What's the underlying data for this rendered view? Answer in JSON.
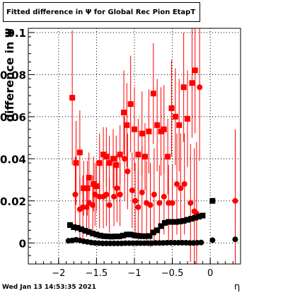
{
  "chart_data": {
    "type": "scatter",
    "title": "Fitted difference in  Ψ  for Global Rec Pion EtapT",
    "xlabel": "η",
    "ylabel": "difference in  Ψ",
    "xlim": [
      -2.4,
      0.4
    ],
    "ylim": [
      -0.01,
      0.102
    ],
    "x_ticks": [
      -2,
      -1.5,
      -1,
      -0.5,
      0
    ],
    "x_tick_labels": [
      "−2",
      "−1.5",
      "−1",
      "−0.5",
      "0"
    ],
    "y_ticks": [
      0,
      0.02,
      0.04,
      0.06,
      0.08,
      0.1
    ],
    "y_tick_labels": [
      "0",
      "0.02",
      "0.04",
      "0.06",
      "0.08",
      "0.1"
    ],
    "grid": true,
    "colors": {
      "red": "#ff0000",
      "black": "#000000",
      "frame": "#000000"
    },
    "series": [
      {
        "marker": "square",
        "color": "#ff0000",
        "points": [
          {
            "x": -1.82,
            "y": 0.069,
            "err": 0.032
          },
          {
            "x": -1.77,
            "y": 0.038,
            "err": 0.02
          },
          {
            "x": -1.72,
            "y": 0.043,
            "err": 0.02
          },
          {
            "x": -1.67,
            "y": 0.026,
            "err": 0.013
          },
          {
            "x": -1.62,
            "y": 0.026,
            "err": 0.013
          },
          {
            "x": -1.6,
            "y": 0.031,
            "err": 0.012
          },
          {
            "x": -1.54,
            "y": 0.028,
            "err": 0.013
          },
          {
            "x": -1.5,
            "y": 0.027,
            "err": 0.012
          },
          {
            "x": -1.46,
            "y": 0.038,
            "err": 0.014
          },
          {
            "x": -1.41,
            "y": 0.042,
            "err": 0.013
          },
          {
            "x": -1.37,
            "y": 0.041,
            "err": 0.014
          },
          {
            "x": -1.33,
            "y": 0.038,
            "err": 0.013
          },
          {
            "x": -1.28,
            "y": 0.04,
            "err": 0.014
          },
          {
            "x": -1.24,
            "y": 0.037,
            "err": 0.014
          },
          {
            "x": -1.19,
            "y": 0.042,
            "err": 0.014
          },
          {
            "x": -1.14,
            "y": 0.062,
            "err": 0.02
          },
          {
            "x": -1.1,
            "y": 0.056,
            "err": 0.02
          },
          {
            "x": -1.05,
            "y": 0.066,
            "err": 0.023
          },
          {
            "x": -1.0,
            "y": 0.054,
            "err": 0.02
          },
          {
            "x": -0.95,
            "y": 0.042,
            "err": 0.017
          },
          {
            "x": -0.9,
            "y": 0.052,
            "err": 0.02
          },
          {
            "x": -0.86,
            "y": 0.041,
            "err": 0.016
          },
          {
            "x": -0.81,
            "y": 0.053,
            "err": 0.02
          },
          {
            "x": -0.75,
            "y": 0.071,
            "err": 0.024
          },
          {
            "x": -0.7,
            "y": 0.056,
            "err": 0.022
          },
          {
            "x": -0.65,
            "y": 0.053,
            "err": 0.021
          },
          {
            "x": -0.61,
            "y": 0.054,
            "err": 0.021
          },
          {
            "x": -0.56,
            "y": 0.041,
            "err": 0.018
          },
          {
            "x": -0.51,
            "y": 0.064,
            "err": 0.023
          },
          {
            "x": -0.46,
            "y": 0.06,
            "err": 0.023
          },
          {
            "x": -0.41,
            "y": 0.056,
            "err": 0.022
          },
          {
            "x": -0.35,
            "y": 0.074,
            "err": 0.026
          },
          {
            "x": -0.3,
            "y": 0.059,
            "err": 0.023
          },
          {
            "x": -0.24,
            "y": 0.076,
            "err": 0.026
          },
          {
            "x": -0.2,
            "y": 0.082,
            "err": 0.03
          }
        ]
      },
      {
        "marker": "circle",
        "color": "#ff0000",
        "points": [
          {
            "x": -1.78,
            "y": 0.023,
            "err": 0.018
          },
          {
            "x": -1.72,
            "y": 0.016,
            "err": 0.015
          },
          {
            "x": -1.68,
            "y": 0.017,
            "err": 0.015
          },
          {
            "x": -1.63,
            "y": 0.017,
            "err": 0.014
          },
          {
            "x": -1.6,
            "y": 0.019,
            "err": 0.014
          },
          {
            "x": -1.55,
            "y": 0.018,
            "err": 0.014
          },
          {
            "x": -1.52,
            "y": 0.023,
            "err": 0.015
          },
          {
            "x": -1.46,
            "y": 0.022,
            "err": 0.015
          },
          {
            "x": -1.41,
            "y": 0.022,
            "err": 0.015
          },
          {
            "x": -1.37,
            "y": 0.023,
            "err": 0.015
          },
          {
            "x": -1.33,
            "y": 0.018,
            "err": 0.013
          },
          {
            "x": -1.27,
            "y": 0.022,
            "err": 0.014
          },
          {
            "x": -1.23,
            "y": 0.026,
            "err": 0.016
          },
          {
            "x": -1.19,
            "y": 0.023,
            "err": 0.015
          },
          {
            "x": -1.13,
            "y": 0.04,
            "err": 0.02
          },
          {
            "x": -1.09,
            "y": 0.034,
            "err": 0.018
          },
          {
            "x": -1.03,
            "y": 0.025,
            "err": 0.018
          },
          {
            "x": -0.99,
            "y": 0.02,
            "err": 0.018
          },
          {
            "x": -0.95,
            "y": 0.017,
            "err": 0.018
          },
          {
            "x": -0.9,
            "y": 0.024,
            "err": 0.022
          },
          {
            "x": -0.84,
            "y": 0.019,
            "err": 0.02
          },
          {
            "x": -0.79,
            "y": 0.018,
            "err": 0.02
          },
          {
            "x": -0.74,
            "y": 0.023,
            "err": 0.022
          },
          {
            "x": -0.67,
            "y": 0.019,
            "err": 0.018
          },
          {
            "x": -0.61,
            "y": 0.022,
            "err": 0.018
          },
          {
            "x": -0.55,
            "y": 0.019,
            "err": 0.018
          },
          {
            "x": -0.5,
            "y": 0.019,
            "err": 0.018
          },
          {
            "x": -0.44,
            "y": 0.028,
            "err": 0.024
          },
          {
            "x": -0.39,
            "y": 0.026,
            "err": 0.026
          },
          {
            "x": -0.34,
            "y": 0.028,
            "err": 0.024
          },
          {
            "x": -0.26,
            "y": 0.019,
            "err": 0.028
          },
          {
            "x": -0.21,
            "y": 0.015,
            "err": 0.03
          },
          {
            "x": -0.18,
            "y": 0.014,
            "err": 0.034
          },
          {
            "x": -0.14,
            "y": 0.074,
            "err": 0.035
          },
          {
            "x": 0.33,
            "y": 0.02,
            "err": 0.034
          }
        ]
      },
      {
        "marker": "square",
        "color": "#000000",
        "points": [
          {
            "x": -1.85,
            "y": 0.0085
          },
          {
            "x": -1.8,
            "y": 0.0075
          },
          {
            "x": -1.75,
            "y": 0.0072
          },
          {
            "x": -1.7,
            "y": 0.0065
          },
          {
            "x": -1.65,
            "y": 0.0058
          },
          {
            "x": -1.6,
            "y": 0.0052
          },
          {
            "x": -1.55,
            "y": 0.0045
          },
          {
            "x": -1.5,
            "y": 0.004
          },
          {
            "x": -1.45,
            "y": 0.0035
          },
          {
            "x": -1.4,
            "y": 0.0032
          },
          {
            "x": -1.35,
            "y": 0.0031
          },
          {
            "x": -1.3,
            "y": 0.003
          },
          {
            "x": -1.25,
            "y": 0.0031
          },
          {
            "x": -1.2,
            "y": 0.0031
          },
          {
            "x": -1.15,
            "y": 0.0035
          },
          {
            "x": -1.1,
            "y": 0.004
          },
          {
            "x": -1.05,
            "y": 0.004
          },
          {
            "x": -1.0,
            "y": 0.0036
          },
          {
            "x": -0.95,
            "y": 0.0034
          },
          {
            "x": -0.9,
            "y": 0.0032
          },
          {
            "x": -0.85,
            "y": 0.0032
          },
          {
            "x": -0.8,
            "y": 0.0033
          },
          {
            "x": -0.75,
            "y": 0.005
          },
          {
            "x": -0.7,
            "y": 0.006
          },
          {
            "x": -0.65,
            "y": 0.008
          },
          {
            "x": -0.6,
            "y": 0.0095
          },
          {
            "x": -0.55,
            "y": 0.01
          },
          {
            "x": -0.5,
            "y": 0.01
          },
          {
            "x": -0.45,
            "y": 0.01
          },
          {
            "x": -0.4,
            "y": 0.0102
          },
          {
            "x": -0.35,
            "y": 0.0105
          },
          {
            "x": -0.3,
            "y": 0.011
          },
          {
            "x": -0.25,
            "y": 0.0115
          },
          {
            "x": -0.2,
            "y": 0.012
          },
          {
            "x": -0.15,
            "y": 0.0125
          },
          {
            "x": -0.1,
            "y": 0.013
          },
          {
            "x": 0.03,
            "y": 0.02
          }
        ]
      },
      {
        "marker": "circle",
        "color": "#000000",
        "points": [
          {
            "x": -1.87,
            "y": 0.001
          },
          {
            "x": -1.82,
            "y": 0.0012
          },
          {
            "x": -1.77,
            "y": 0.0015
          },
          {
            "x": -1.72,
            "y": 0.0012
          },
          {
            "x": -1.67,
            "y": 0.0008
          },
          {
            "x": -1.62,
            "y": 0.0005
          },
          {
            "x": -1.57,
            "y": 0.0002
          },
          {
            "x": -1.52,
            "y": 0.0
          },
          {
            "x": -1.47,
            "y": -0.0001
          },
          {
            "x": -1.42,
            "y": -0.0002
          },
          {
            "x": -1.37,
            "y": -0.0002
          },
          {
            "x": -1.32,
            "y": -0.0002
          },
          {
            "x": -1.27,
            "y": -0.0002
          },
          {
            "x": -1.22,
            "y": -0.0002
          },
          {
            "x": -1.17,
            "y": -0.0002
          },
          {
            "x": -1.12,
            "y": -0.0001
          },
          {
            "x": -1.07,
            "y": -0.0001
          },
          {
            "x": -1.02,
            "y": -0.0001
          },
          {
            "x": -0.97,
            "y": -0.0001
          },
          {
            "x": -0.92,
            "y": -0.0001
          },
          {
            "x": -0.87,
            "y": -0.0001
          },
          {
            "x": -0.82,
            "y": -0.0001
          },
          {
            "x": -0.77,
            "y": -0.0001
          },
          {
            "x": -0.72,
            "y": 0.0
          },
          {
            "x": -0.67,
            "y": 0.0
          },
          {
            "x": -0.62,
            "y": 0.0
          },
          {
            "x": -0.57,
            "y": 0.0001
          },
          {
            "x": -0.52,
            "y": 0.0001
          },
          {
            "x": -0.47,
            "y": 0.0001
          },
          {
            "x": -0.42,
            "y": 0.0001
          },
          {
            "x": -0.37,
            "y": 0.0001
          },
          {
            "x": -0.32,
            "y": 0.0001
          },
          {
            "x": -0.27,
            "y": 0.0
          },
          {
            "x": -0.22,
            "y": 0.0
          },
          {
            "x": -0.17,
            "y": 0.0001
          },
          {
            "x": -0.12,
            "y": 0.0002
          },
          {
            "x": 0.03,
            "y": 0.0013
          },
          {
            "x": 0.33,
            "y": 0.0017
          }
        ]
      }
    ]
  },
  "footer": {
    "timestamp": "Wed Jan 13 14:53:35 2021"
  }
}
